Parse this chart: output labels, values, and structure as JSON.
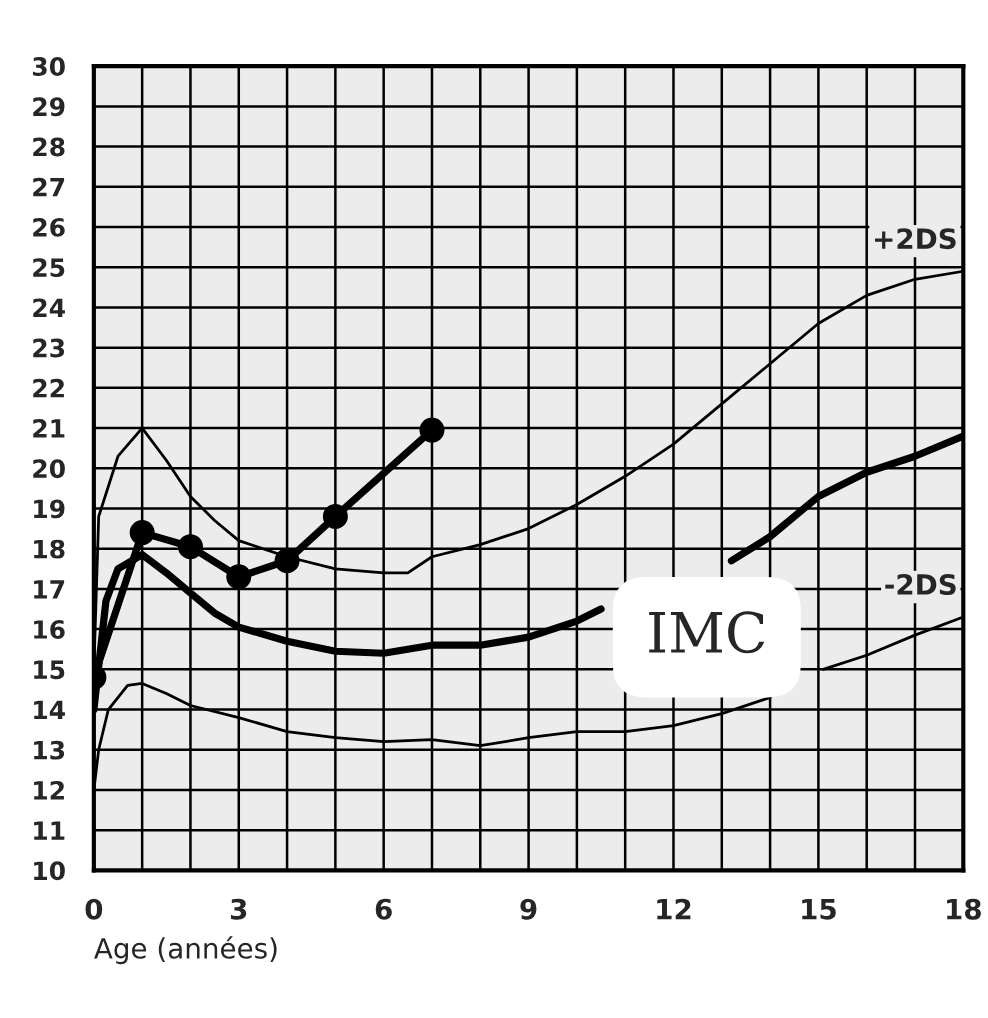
{
  "chart_data": {
    "type": "line",
    "xlabel": "Age (années)",
    "xlim": [
      0,
      18
    ],
    "ylim": [
      10,
      30
    ],
    "xticks": [
      0,
      {
        "value": 1,
        "label": null
      },
      {
        "value": 2,
        "label": null
      },
      3,
      {
        "value": 4,
        "label": null
      },
      {
        "value": 5,
        "label": null
      },
      6,
      {
        "value": 7,
        "label": null
      },
      {
        "value": 8,
        "label": null
      },
      9,
      {
        "value": 10,
        "label": null
      },
      {
        "value": 11,
        "label": null
      },
      12,
      {
        "value": 13,
        "label": null
      },
      {
        "value": 14,
        "label": null
      },
      15,
      {
        "value": 16,
        "label": null
      },
      {
        "value": 17,
        "label": null
      },
      18
    ],
    "yticks": [
      10,
      11,
      12,
      13,
      14,
      15,
      16,
      17,
      18,
      19,
      20,
      21,
      22,
      23,
      24,
      25,
      26,
      27,
      28,
      29,
      30
    ],
    "grid": true,
    "legend": false,
    "annotations": [
      "IMC"
    ],
    "series": [
      {
        "name": "+2DS",
        "color": "#000000",
        "marker": "none",
        "x": [
          0,
          0.1,
          0.5,
          1,
          1.5,
          2,
          2.5,
          3,
          4,
          5,
          6,
          6.5,
          7,
          8,
          9,
          10,
          11,
          12,
          13,
          14,
          15,
          16,
          17,
          18
        ],
        "values": [
          15,
          18.8,
          20.3,
          21.0,
          20.2,
          19.3,
          18.7,
          18.2,
          17.8,
          17.5,
          17.4,
          17.4,
          17.8,
          18.1,
          18.5,
          19.1,
          19.8,
          20.6,
          21.6,
          22.6,
          23.6,
          24.3,
          24.7,
          24.9
        ]
      },
      {
        "color": "#000000",
        "marker": "none",
        "x": [
          0,
          0.25,
          0.5,
          1,
          1.5,
          2,
          2.5,
          3,
          4,
          5,
          6,
          7,
          8,
          9,
          10,
          10.5,
          12,
          13.2,
          14,
          15,
          16,
          17,
          18
        ],
        "values": [
          14.0,
          16.7,
          17.5,
          17.85,
          17.4,
          16.9,
          16.4,
          16.05,
          15.7,
          15.45,
          15.4,
          15.6,
          15.6,
          15.8,
          16.2,
          16.5,
          null,
          17.7,
          18.3,
          19.3,
          19.9,
          20.3,
          20.8
        ]
      },
      {
        "name": "-2DS",
        "color": "#000000",
        "marker": "none",
        "x": [
          0,
          0.1,
          0.3,
          0.7,
          1,
          1.5,
          2,
          3,
          4,
          5,
          6,
          7,
          8,
          9,
          10,
          11,
          12,
          13,
          14,
          14.6,
          15.1,
          16,
          17,
          18
        ],
        "values": [
          12.0,
          13.0,
          14.0,
          14.6,
          14.65,
          14.4,
          14.1,
          13.8,
          13.45,
          13.3,
          13.2,
          13.25,
          13.1,
          13.3,
          13.45,
          13.45,
          13.6,
          13.9,
          14.3,
          null,
          15.0,
          15.35,
          15.85,
          16.3
        ]
      },
      {
        "color": "#000000",
        "marker": "circle",
        "x": [
          0,
          1,
          2,
          3,
          4,
          5,
          7
        ],
        "values": [
          14.8,
          18.4,
          18.05,
          17.3,
          17.7,
          18.8,
          20.95
        ]
      }
    ]
  }
}
